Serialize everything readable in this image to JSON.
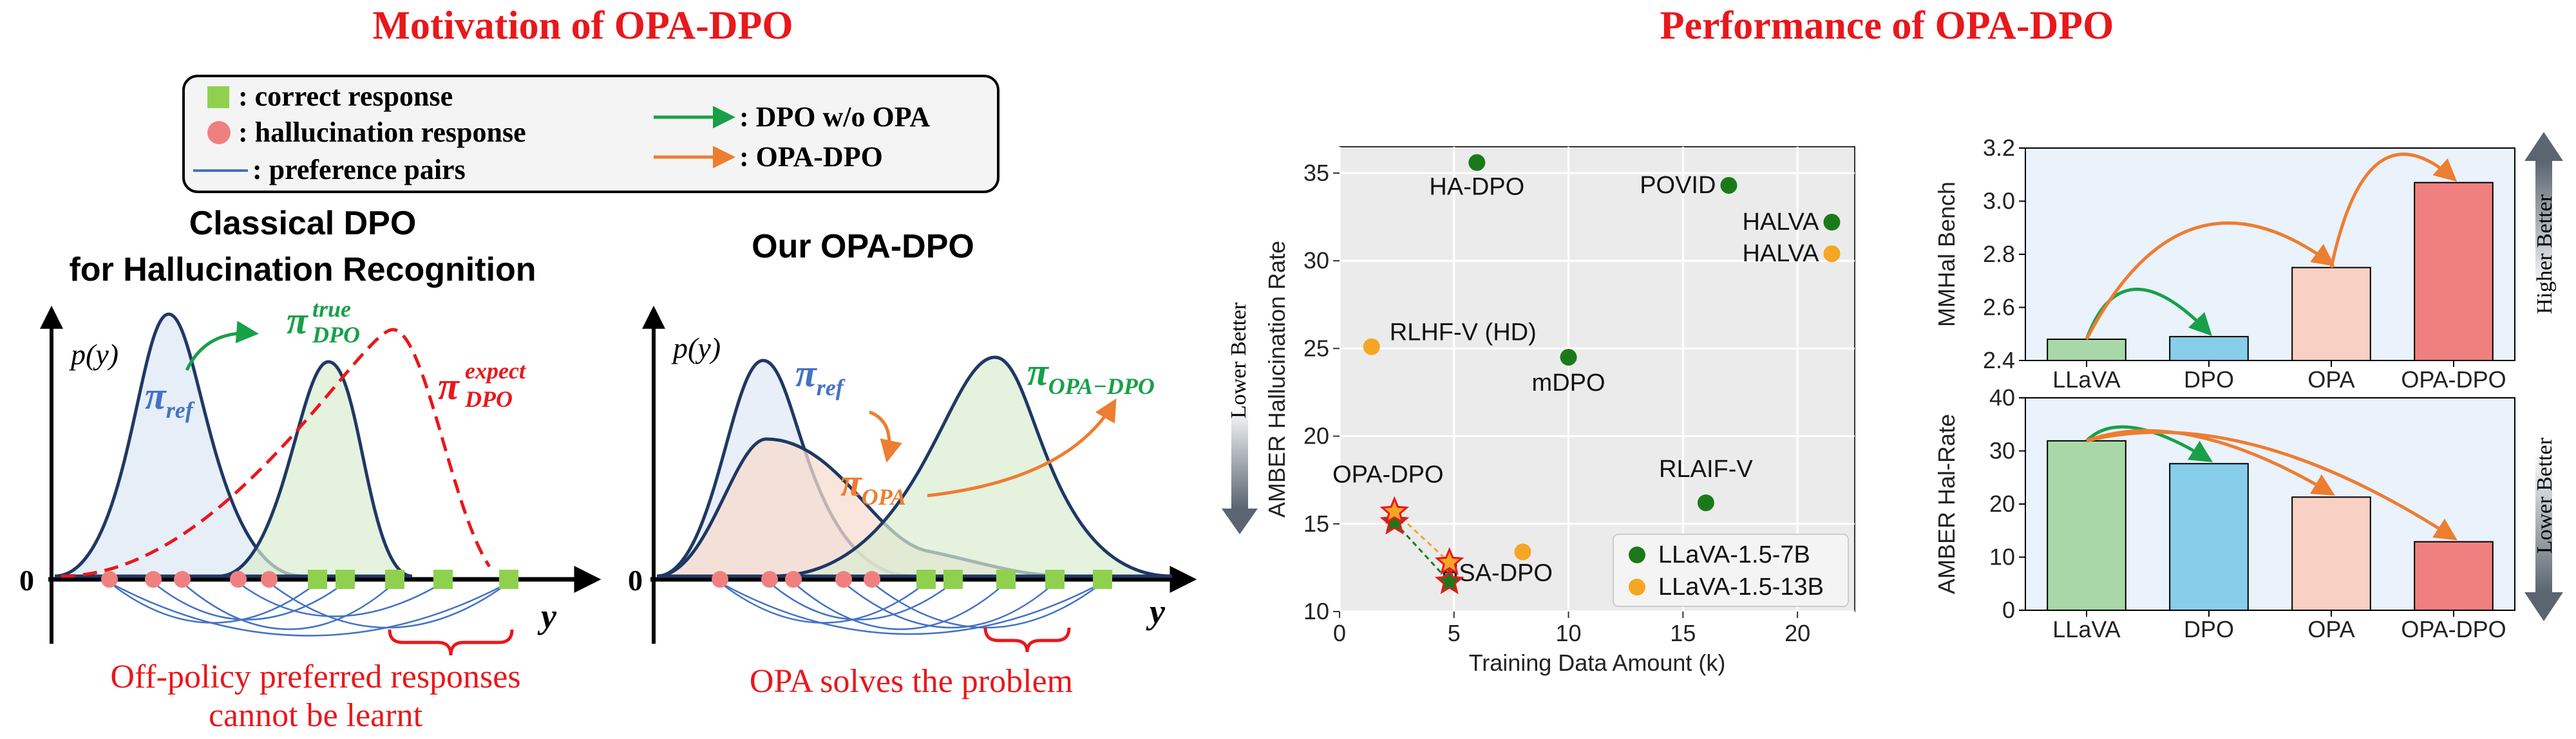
{
  "titles": {
    "motivation": "Motivation of OPA-DPO",
    "performance": "Performance of OPA-DPO"
  },
  "legend": {
    "correct": ": correct response",
    "hallucination": ": hallucination response",
    "pairs": ": preference pairs",
    "dpo_without_opa": ": DPO w/o OPA",
    "opa_dpo": ": OPA-DPO",
    "colors": {
      "correct": "#8fd14f",
      "hallucination": "#f08080",
      "pairs": "#4472c4",
      "green_arrow": "#18a048",
      "orange_arrow": "#ed7d31"
    }
  },
  "classical_panel": {
    "heading_line1": "Classical DPO",
    "heading_line2": "for Hallucination Recognition",
    "py": "p(y)",
    "pi_ref": "π",
    "pi_ref_sub": "ref",
    "pi_true": "π",
    "pi_true_sup": "true",
    "pi_true_sub": "DPO",
    "pi_expect": "π",
    "pi_expect_sup": "expect",
    "pi_expect_sub": "DPO",
    "zero": "0",
    "y": "y",
    "note_line1": "Off-policy preferred responses",
    "note_line2": "cannot be learnt"
  },
  "opa_panel": {
    "heading": "Our OPA-DPO",
    "py": "p(y)",
    "pi_ref": "π",
    "pi_ref_sub": "ref",
    "pi_opa": "π",
    "pi_opa_sub": "OPA",
    "pi_opadpo": "π",
    "pi_opadpo_sub": "OPA−DPO",
    "zero": "0",
    "y": "y",
    "note": "OPA solves the problem"
  },
  "side_labels": {
    "lower_better_left": "Lower Better",
    "higher_better": "Higher Better",
    "lower_better_right": "Lower Better"
  },
  "chart_data": [
    {
      "type": "scatter",
      "xlabel": "Training Data Amount (k)",
      "ylabel": "AMBER Hallucination Rate",
      "xlim": [
        0,
        22.5
      ],
      "ylim": [
        10,
        36.5
      ],
      "xticks": [
        "0",
        "5",
        "10",
        "15",
        "20"
      ],
      "yticks": [
        "10",
        "15",
        "20",
        "25",
        "30",
        "35"
      ],
      "grid": true,
      "legend_position": "lower-right",
      "series": [
        {
          "name": "LLaVA-1.5-7B",
          "color": "#1a7a1a"
        },
        {
          "name": "LLaVA-1.5-13B",
          "color": "#f5a623"
        }
      ],
      "points": [
        {
          "label": "HA-DPO",
          "x": 6,
          "y": 35.6,
          "series": 0
        },
        {
          "label": "POVID",
          "x": 17,
          "y": 34.3,
          "series": 0
        },
        {
          "label": "HALVA",
          "x": 21.5,
          "y": 32.2,
          "series": 0
        },
        {
          "label": "HALVA",
          "x": 21.5,
          "y": 30.4,
          "series": 1
        },
        {
          "label": "RLHF-V (HD)",
          "x": 1.4,
          "y": 25.1,
          "series": 1
        },
        {
          "label": "mDPO",
          "x": 10,
          "y": 24.5,
          "series": 0
        },
        {
          "label": "RLAIF-V",
          "x": 16,
          "y": 16.2,
          "series": 0
        },
        {
          "label": "HSA-DPO",
          "x": 8,
          "y": 13.4,
          "series": 1
        }
      ],
      "opa_dpo_label": "OPA-DPO",
      "opa_dpo_label_color": "#e8181c",
      "opa_dpo_stars": [
        {
          "x": 2.4,
          "y": 15.1,
          "series": 0
        },
        {
          "x": 2.4,
          "y": 15.7,
          "series": 1
        },
        {
          "x": 4.8,
          "y": 11.7,
          "series": 0
        },
        {
          "x": 4.8,
          "y": 12.8,
          "series": 1
        }
      ]
    },
    {
      "type": "bar",
      "ylabel": "MMHal Bench",
      "categories": [
        "LLaVA",
        "DPO",
        "OPA",
        "OPA-DPO"
      ],
      "values": [
        2.48,
        2.49,
        2.75,
        3.07
      ],
      "ylim": [
        2.4,
        3.2
      ],
      "yticks": [
        "2.4",
        "2.6",
        "2.8",
        "3.0",
        "3.2"
      ],
      "colors": [
        "#a8d8a8",
        "#87ceeb",
        "#f9d0c4",
        "#f08080"
      ]
    },
    {
      "type": "bar",
      "ylabel": "AMBER Hal-Rate",
      "categories": [
        "LLaVA",
        "DPO",
        "OPA",
        "OPA-DPO"
      ],
      "values": [
        31.9,
        27.6,
        21.3,
        12.9
      ],
      "ylim": [
        0,
        40
      ],
      "yticks": [
        "0",
        "10",
        "20",
        "30",
        "40"
      ],
      "colors": [
        "#a8d8a8",
        "#87ceeb",
        "#f9d0c4",
        "#f08080"
      ]
    }
  ]
}
